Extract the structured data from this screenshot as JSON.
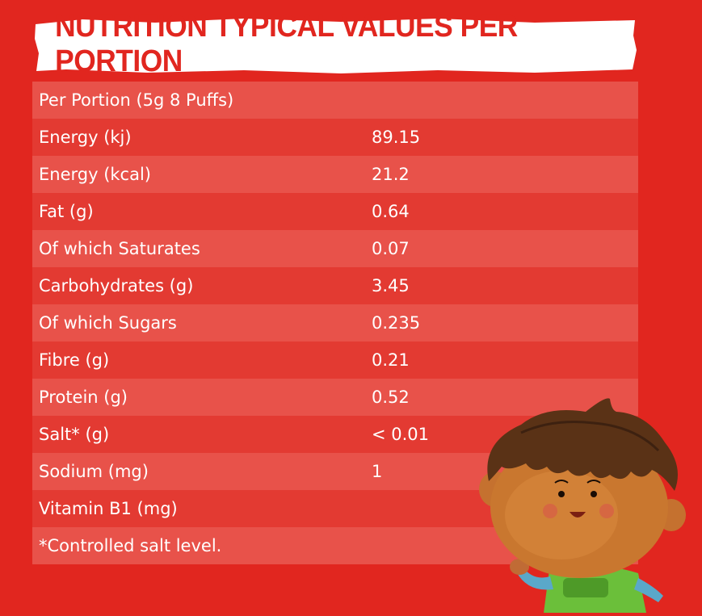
{
  "title": "NUTRITION TYPICAL VALUES PER PORTION",
  "colors": {
    "background": "#e1261f",
    "row_light": "#e8524a",
    "row_dark": "#e33a32",
    "banner": "#ffffff"
  },
  "rows": [
    {
      "label": "Per Portion (5g 8 Puffs)",
      "value": ""
    },
    {
      "label": "Energy (kj)",
      "value": "89.15"
    },
    {
      "label": "Energy (kcal)",
      "value": "21.2"
    },
    {
      "label": "Fat (g)",
      "value": "0.64"
    },
    {
      "label": "Of which Saturates",
      "value": "0.07"
    },
    {
      "label": "Carbohydrates (g)",
      "value": "3.45"
    },
    {
      "label": "Of which Sugars",
      "value": "0.235"
    },
    {
      "label": "Fibre (g)",
      "value": "0.21"
    },
    {
      "label": "Protein (g)",
      "value": "0.52"
    },
    {
      "label": "Salt* (g)",
      "value": "< 0.01"
    },
    {
      "label": "Sodium (mg)",
      "value": "1"
    },
    {
      "label": "Vitamin B1 (mg)",
      "value": ""
    },
    {
      "label": "*Controlled salt level.",
      "value": ""
    }
  ],
  "illustration": "cartoon-boy-illustration"
}
